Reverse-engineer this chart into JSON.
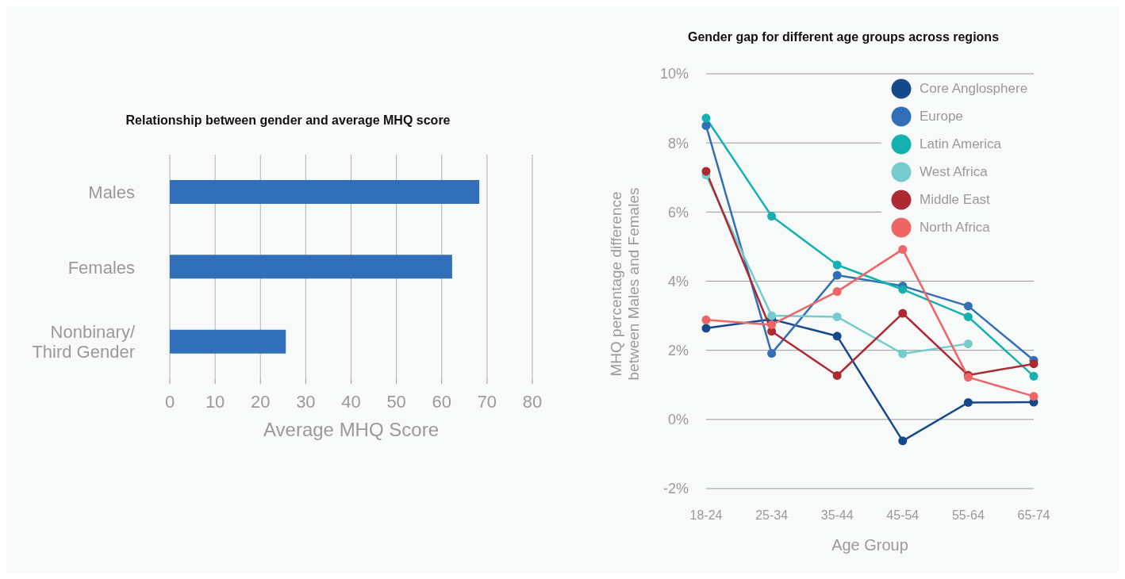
{
  "chart_data": [
    {
      "type": "bar",
      "orientation": "horizontal",
      "title": "Relationship between gender and average MHQ score",
      "xlabel": "Average MHQ Score",
      "categories": [
        "Males",
        "Females",
        "Nonbinary/\nThird Gender"
      ],
      "values": [
        68.3,
        62.3,
        25.6
      ],
      "color": "#3170b8",
      "xlim": [
        0,
        80
      ],
      "xticks": [
        0,
        10,
        20,
        30,
        40,
        50,
        60,
        70,
        80
      ],
      "grid": "x"
    },
    {
      "type": "line",
      "title": "Gender gap for different age groups across regions",
      "xlabel": "Age Group",
      "ylabel": "MHQ percentage difference\nbetween Males and Females",
      "categories": [
        "18-24",
        "25-34",
        "35-44",
        "45-54",
        "55-64",
        "65-74"
      ],
      "series": [
        {
          "name": "Core Anglosphere",
          "color": "#144a8c",
          "values": [
            2.64,
            2.9,
            2.41,
            -0.62,
            0.49,
            0.5
          ]
        },
        {
          "name": "Europe",
          "color": "#3170b8",
          "values": [
            8.5,
            1.91,
            4.17,
            3.86,
            3.28,
            1.71
          ]
        },
        {
          "name": "Latin America",
          "color": "#14b1b0",
          "values": [
            8.72,
            5.88,
            4.47,
            3.76,
            2.97,
            1.25
          ]
        },
        {
          "name": "West Africa",
          "color": "#74cccc",
          "values": [
            7.07,
            3.0,
            2.97,
            1.9,
            2.19,
            null
          ]
        },
        {
          "name": "Middle East",
          "color": "#ad2a32",
          "values": [
            7.18,
            2.55,
            1.27,
            3.07,
            1.28,
            1.61
          ]
        },
        {
          "name": "North Africa",
          "color": "#ef6565",
          "values": [
            2.88,
            2.74,
            3.7,
            4.92,
            1.22,
            0.67
          ]
        }
      ],
      "ylim": [
        -2,
        10
      ],
      "yticks": [
        {
          "value": -2,
          "label": "-2%"
        },
        {
          "value": 0,
          "label": "0%"
        },
        {
          "value": 2,
          "label": "2%"
        },
        {
          "value": 4,
          "label": "4%"
        },
        {
          "value": 6,
          "label": "6%"
        },
        {
          "value": 8,
          "label": "8%"
        },
        {
          "value": 10,
          "label": "10%"
        }
      ],
      "grid": "y",
      "legend": "top right",
      "marker": "circle",
      "line_style": "solid"
    }
  ]
}
